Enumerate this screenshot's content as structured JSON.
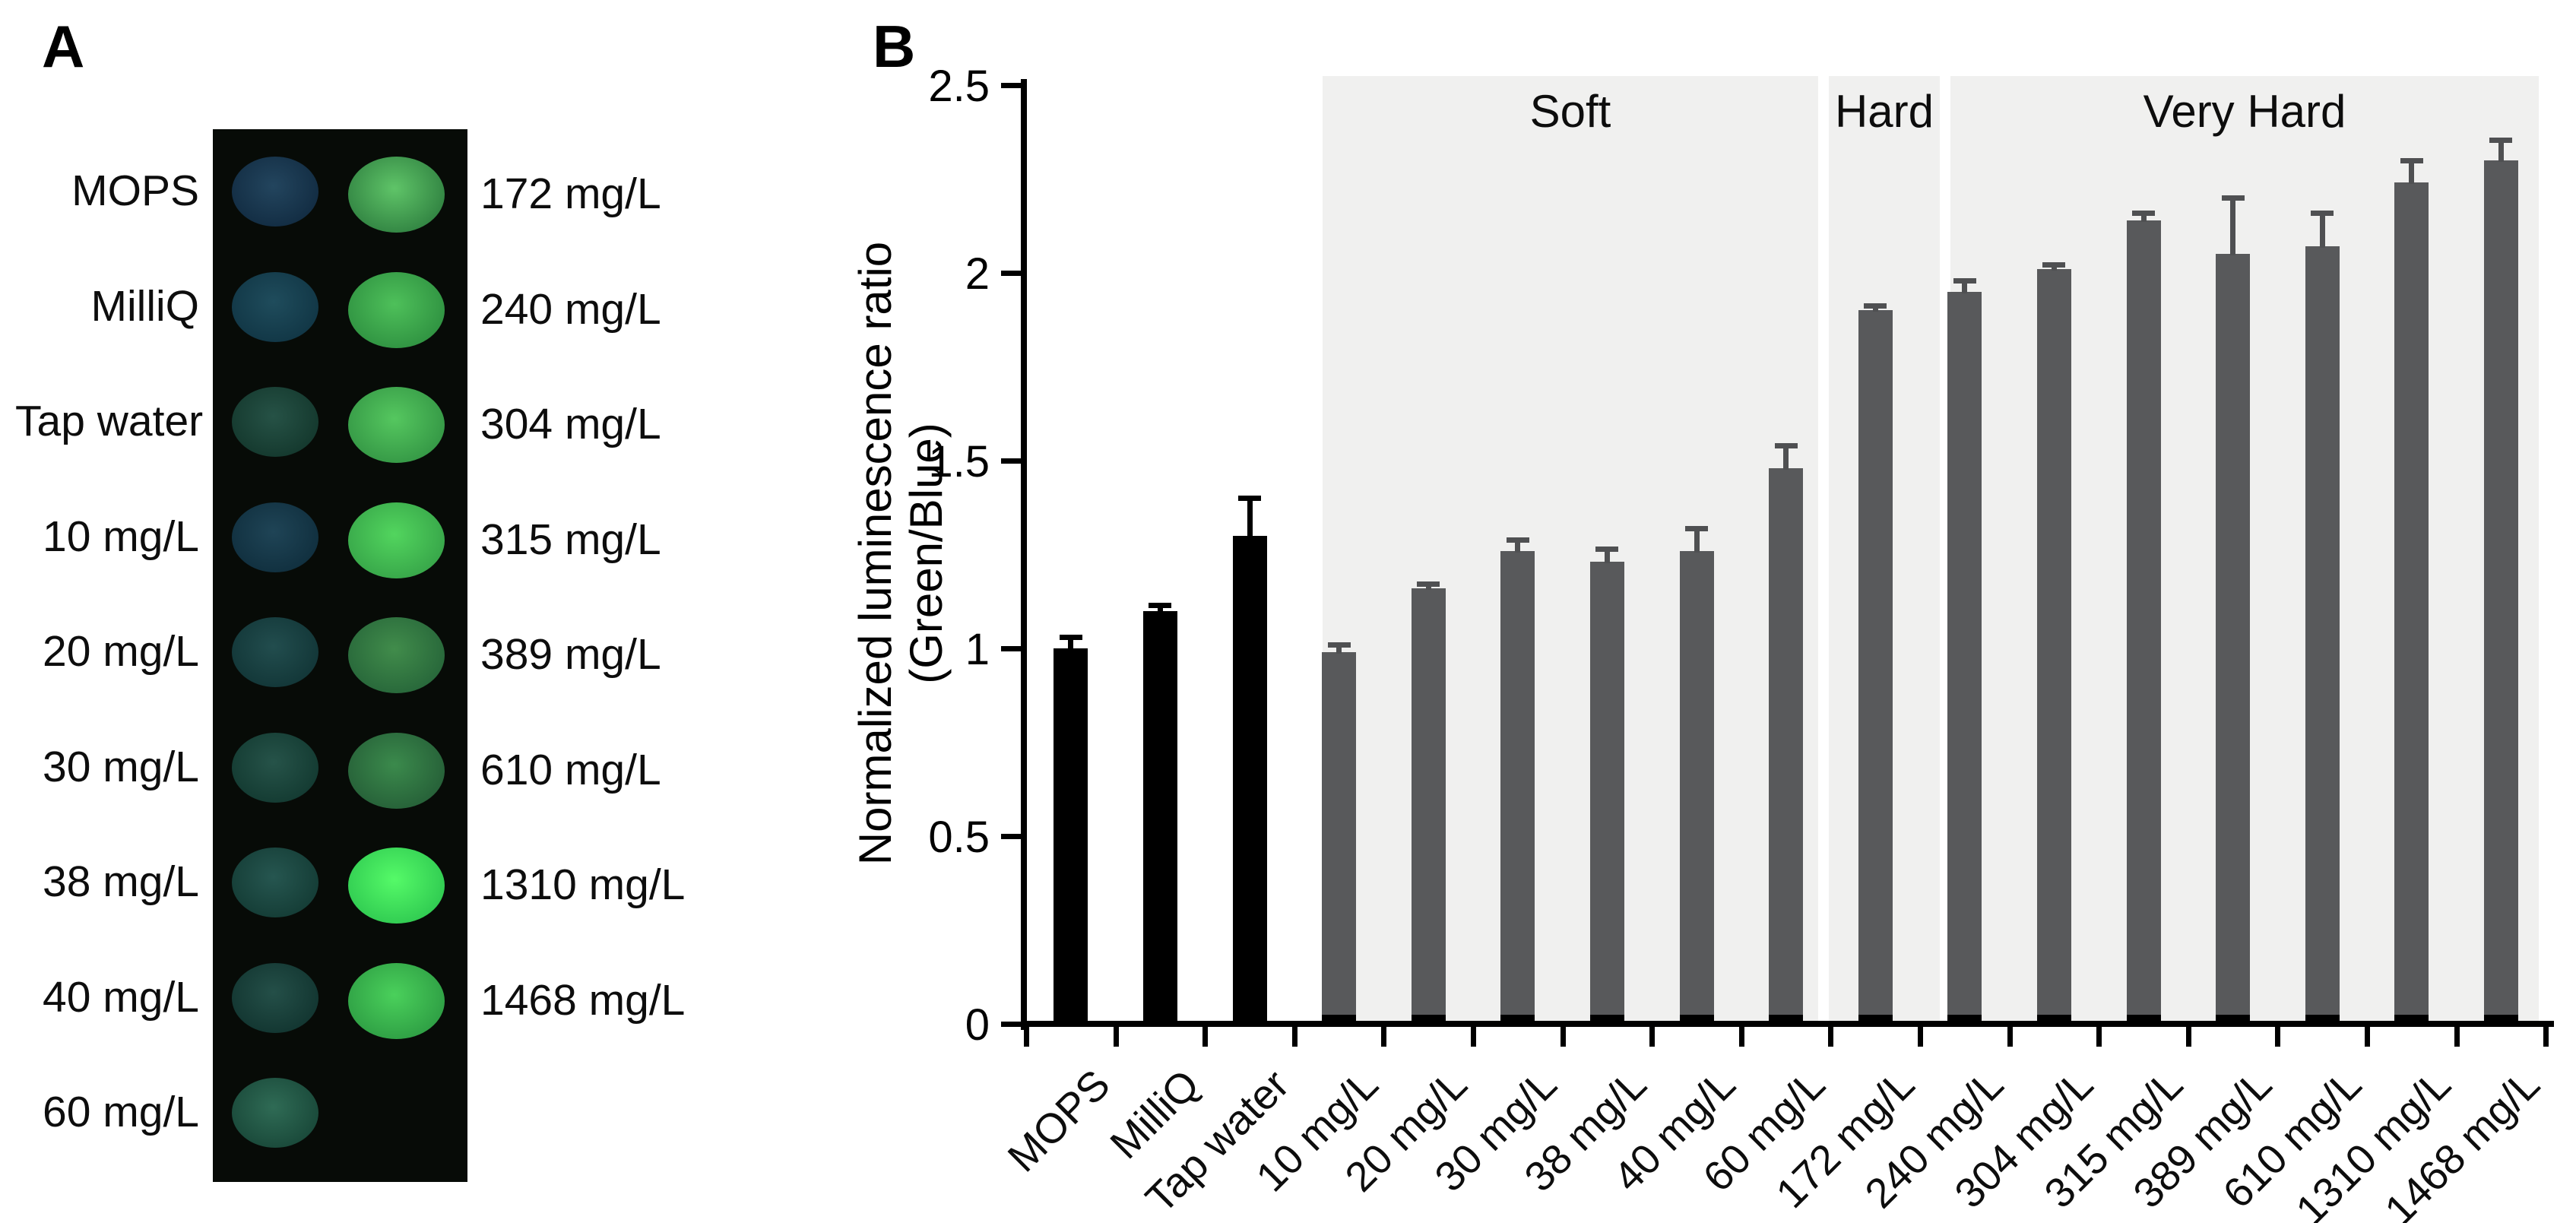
{
  "figure": {
    "panel_a_letter": "A",
    "panel_b_letter": "B"
  },
  "panel_a": {
    "blot_background": "#070b07",
    "left_rows": [
      {
        "label": "MOPS",
        "center": "#23455e",
        "edge": "#122c42"
      },
      {
        "label": "MilliQ",
        "center": "#1f4c5c",
        "edge": "#113645"
      },
      {
        "label": "Tap water",
        "center": "#265246",
        "edge": "#14382d"
      },
      {
        "label": "10 mg/L",
        "center": "#1f4456",
        "edge": "#102f3e"
      },
      {
        "label": "20 mg/L",
        "center": "#224d4e",
        "edge": "#123637"
      },
      {
        "label": "30 mg/L",
        "center": "#265349",
        "edge": "#133a31"
      },
      {
        "label": "38 mg/L",
        "center": "#265650",
        "edge": "#143c35"
      },
      {
        "label": "40 mg/L",
        "center": "#244f48",
        "edge": "#123530"
      },
      {
        "label": "60 mg/L",
        "center": "#2f6b55",
        "edge": "#194839"
      }
    ],
    "right_rows": [
      {
        "label": "172 mg/L",
        "center": "#5fc468",
        "edge": "#2f8040"
      },
      {
        "label": "240 mg/L",
        "center": "#4ec05a",
        "edge": "#2e9040"
      },
      {
        "label": "304 mg/L",
        "center": "#55c75f",
        "edge": "#339544"
      },
      {
        "label": "315 mg/L",
        "center": "#52d55e",
        "edge": "#36a348"
      },
      {
        "label": "389 mg/L",
        "center": "#418c4b",
        "edge": "#266539"
      },
      {
        "label": "610 mg/L",
        "center": "#3b8a4c",
        "edge": "#255e37"
      },
      {
        "label": "1310 mg/L",
        "center": "#55fa68",
        "edge": "#2ec850"
      },
      {
        "label": "1468 mg/L",
        "center": "#4ad05b",
        "edge": "#2d9c43"
      }
    ]
  },
  "chart_data": {
    "type": "bar",
    "title": "",
    "ylabel_line1": "Normalized luminescence ratio",
    "ylabel_line2": "(Green/Blue)",
    "ylim": [
      0,
      2.5
    ],
    "y_ticks": [
      "0",
      "0.5",
      "1",
      "1.5",
      "2",
      "2.5"
    ],
    "grid": "off",
    "legend": "none",
    "categories": [
      "MOPS",
      "MilliQ",
      "Tap water",
      "10 mg/L",
      "20 mg/L",
      "30 mg/L",
      "38 mg/L",
      "40 mg/L",
      "60 mg/L",
      "172 mg/L",
      "240 mg/L",
      "304 mg/L",
      "315 mg/L",
      "389 mg/L",
      "610 mg/L",
      "1310 mg/L",
      "1468 mg/L"
    ],
    "values": [
      1.0,
      1.1,
      1.3,
      0.99,
      1.16,
      1.26,
      1.23,
      1.26,
      1.48,
      1.9,
      1.95,
      2.01,
      2.14,
      2.05,
      2.07,
      2.24,
      2.3
    ],
    "errors": [
      0.03,
      0.015,
      0.1,
      0.02,
      0.012,
      0.03,
      0.035,
      0.06,
      0.06,
      0.012,
      0.03,
      0.012,
      0.02,
      0.15,
      0.09,
      0.06,
      0.055
    ],
    "bar_groups": [
      "control",
      "control",
      "control",
      "sample",
      "sample",
      "sample",
      "sample",
      "sample",
      "sample",
      "sample",
      "sample",
      "sample",
      "sample",
      "sample",
      "sample",
      "sample",
      "sample"
    ],
    "group_colors": {
      "control": "#000000",
      "sample": "#58595b"
    },
    "sample_bar_base_color": "#000000",
    "region_fill": "#f0f0ef",
    "regions": [
      {
        "label": "Soft",
        "from_category": "10 mg/L",
        "to_category": "60 mg/L"
      },
      {
        "label": "Hard",
        "from_category": "172 mg/L",
        "to_category": "172 mg/L"
      },
      {
        "label": "Very Hard",
        "from_category": "240 mg/L",
        "to_category": "1468 mg/L"
      }
    ]
  }
}
